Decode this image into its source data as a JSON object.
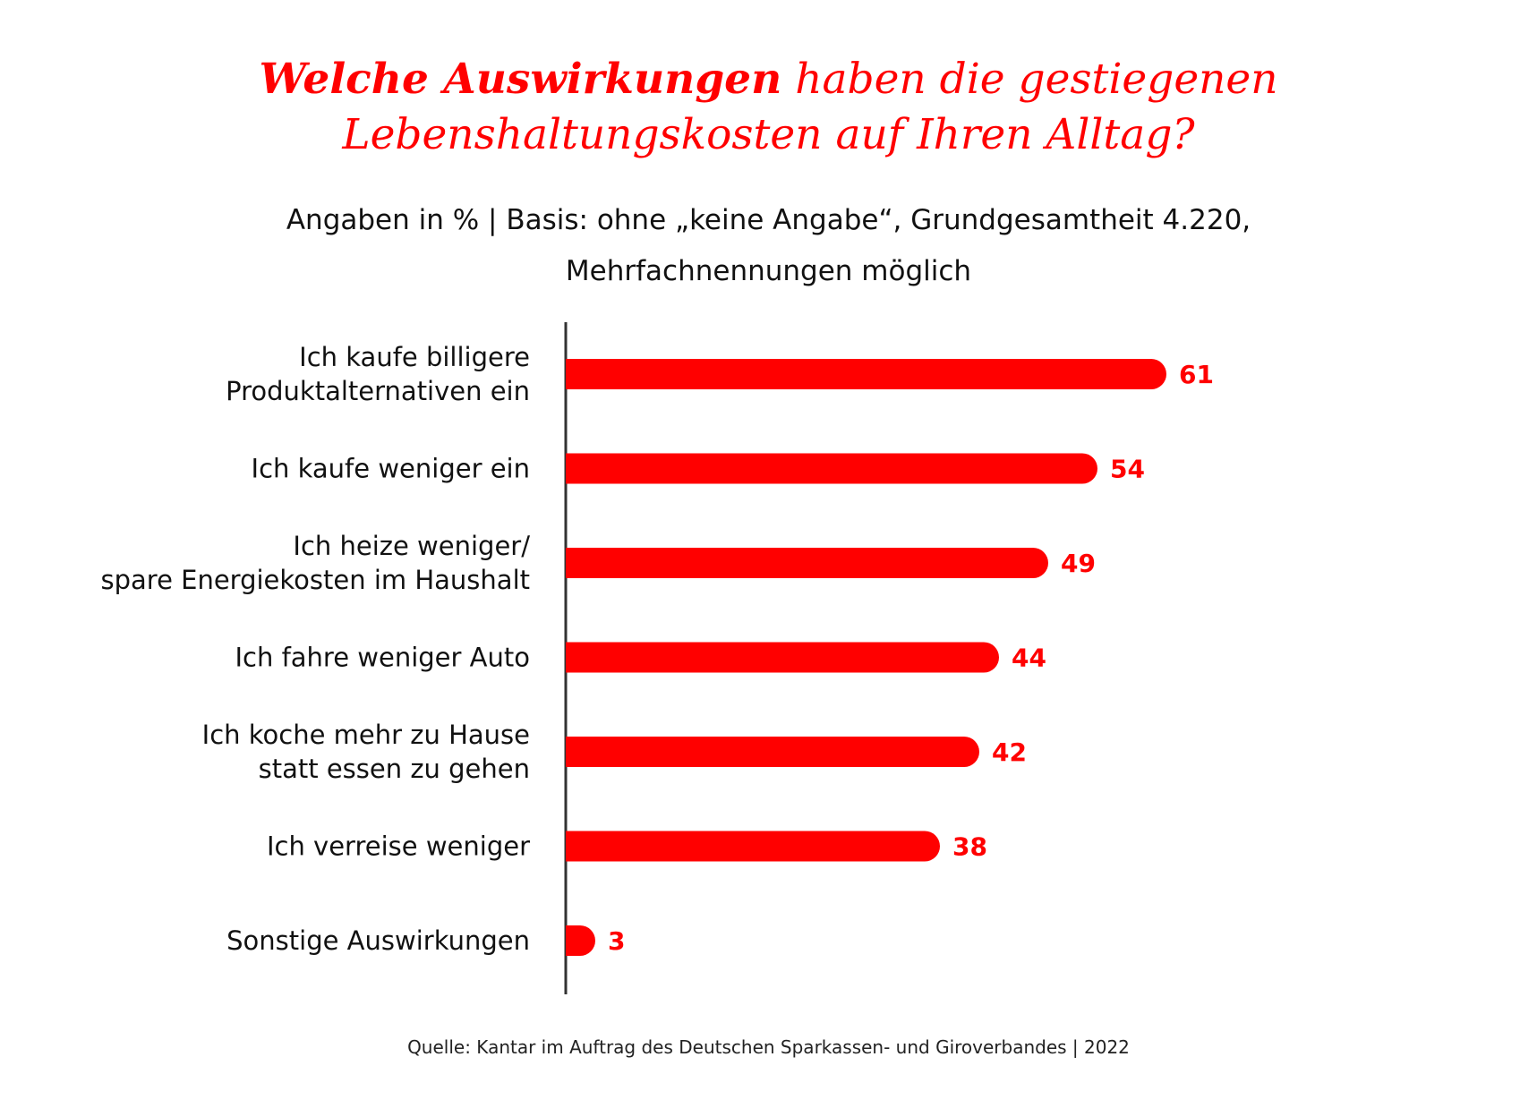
{
  "title": {
    "bold": "Welche Auswirkungen",
    "rest_line1": "haben die gestiegenen",
    "line2": "Lebenshaltungskosten auf Ihren Alltag?"
  },
  "subtitle": {
    "line1": "Angaben in % | Basis: ohne „keine Angabe“, Grundgesamtheit 4.220,",
    "line2": "Mehrfachnennungen möglich"
  },
  "source": "Quelle: Kantar im Auftrag des Deutschen Sparkassen- und Giroverbandes | 2022",
  "colors": {
    "bar": "#ff0000",
    "axis": "#333333",
    "title": "#ff0000"
  },
  "chart_data": {
    "type": "bar",
    "orientation": "horizontal",
    "categories": [
      [
        "Ich kaufe billigere",
        "Produktalternativen ein"
      ],
      [
        "Ich kaufe weniger ein"
      ],
      [
        "Ich heize weniger/",
        "spare Energiekosten im Haushalt"
      ],
      [
        "Ich fahre weniger Auto"
      ],
      [
        "Ich koche mehr zu Hause",
        "statt essen zu gehen"
      ],
      [
        "Ich verreise weniger"
      ],
      [
        "Sonstige Auswirkungen"
      ]
    ],
    "values": [
      61,
      54,
      49,
      44,
      42,
      38,
      3
    ],
    "xlim": [
      0,
      100
    ],
    "unit": "%",
    "grid": false,
    "legend": "none"
  }
}
